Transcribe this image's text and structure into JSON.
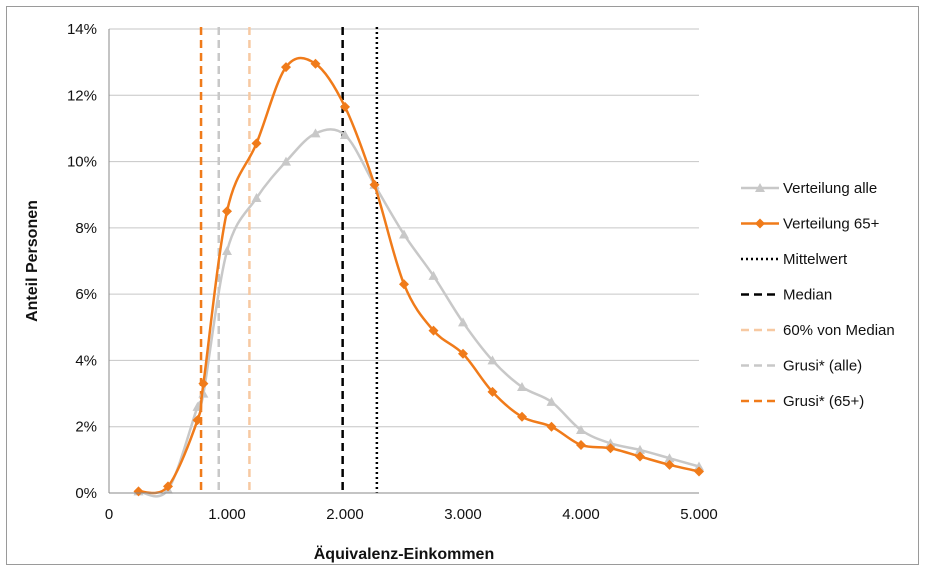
{
  "chart_data": {
    "type": "line",
    "xlabel": "Äquivalenz-Einkommen",
    "ylabel": "Anteil Personen",
    "xlim": [
      0,
      5000
    ],
    "ylim": [
      0,
      14
    ],
    "x_ticks": [
      0,
      1000,
      2000,
      3000,
      4000,
      5000
    ],
    "x_tick_labels": [
      "0",
      "1.000",
      "2.000",
      "3.000",
      "4.000",
      "5.000"
    ],
    "y_ticks": [
      0,
      2,
      4,
      6,
      8,
      10,
      12,
      14
    ],
    "y_tick_labels": [
      "0%",
      "2%",
      "4%",
      "6%",
      "8%",
      "10%",
      "12%",
      "14%"
    ],
    "grid": "horizontal",
    "legend_position": "right",
    "series": [
      {
        "name": "Verteilung alle",
        "color": "#c8c8c8",
        "marker": "triangle",
        "x": [
          250,
          500,
          750,
          800,
          1000,
          1250,
          1500,
          1750,
          2000,
          2250,
          2500,
          2750,
          3000,
          3250,
          3500,
          3750,
          4000,
          4250,
          4500,
          4750,
          5000
        ],
        "y": [
          0.05,
          0.1,
          2.6,
          3.0,
          7.3,
          8.9,
          10.0,
          10.85,
          10.8,
          9.3,
          7.8,
          6.55,
          5.15,
          4.0,
          3.2,
          2.75,
          1.9,
          1.5,
          1.3,
          1.05,
          0.8
        ]
      },
      {
        "name": "Verteilung 65+",
        "color": "#f07b1a",
        "marker": "diamond",
        "x": [
          250,
          500,
          750,
          800,
          1000,
          1250,
          1500,
          1750,
          2000,
          2250,
          2500,
          2750,
          3000,
          3250,
          3500,
          3750,
          4000,
          4250,
          4500,
          4750,
          5000
        ],
        "y": [
          0.05,
          0.2,
          2.2,
          3.3,
          8.5,
          10.55,
          12.85,
          12.95,
          11.65,
          9.3,
          6.3,
          4.9,
          4.2,
          3.05,
          2.3,
          2.0,
          1.45,
          1.35,
          1.1,
          0.85,
          0.65
        ]
      }
    ],
    "vertical_lines": [
      {
        "name": "Mittelwert",
        "x": 2270,
        "color": "#000000",
        "style": "dotted"
      },
      {
        "name": "Median",
        "x": 1980,
        "color": "#000000",
        "style": "dashed"
      },
      {
        "name": "60% von Median",
        "x": 1190,
        "color": "#f7c9a2",
        "style": "dashed"
      },
      {
        "name": "Grusi* (alle)",
        "x": 930,
        "color": "#c8c8c8",
        "style": "dashed"
      },
      {
        "name": "Grusi* (65+)",
        "x": 780,
        "color": "#f07b1a",
        "style": "dashed"
      }
    ]
  }
}
